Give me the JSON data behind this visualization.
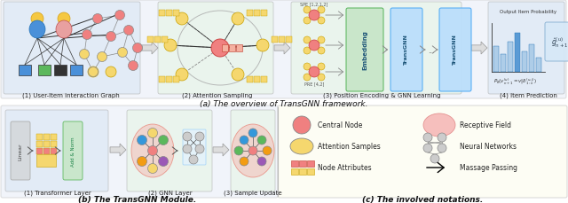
{
  "bg_color": "#ffffff",
  "panel_a_bg": "#e8eef8",
  "panel_b_bg": "#e8eef8",
  "panel_c_bg": "#fdfdf0",
  "caption_a": "(a) The overview of TransGNN framework.",
  "caption_b": "(b) The TransGNN Module.",
  "caption_c": "(c) The involved notations.",
  "sub1_a": "(1) User-Item interaction Graph",
  "sub2_a": "(2) Attention Sampling",
  "sub3_a": "(3) Position Encoding & GNN Learning",
  "sub4_a": "(4) Item Prediction",
  "sub1_b": "(1) Transformer Layer",
  "sub2_b": "(2) GNN Layer",
  "sub3_b": "(3) Sample Update",
  "font_size_caption": 6.5,
  "font_size_sub": 5.0,
  "font_size_legend": 5.5,
  "pink_node": "#f08080",
  "yellow_node": "#f5d76e",
  "blue_node": "#4a90d9",
  "green_node": "#5cb85c",
  "orange_node": "#f0a830",
  "purple_node": "#9b59b6"
}
